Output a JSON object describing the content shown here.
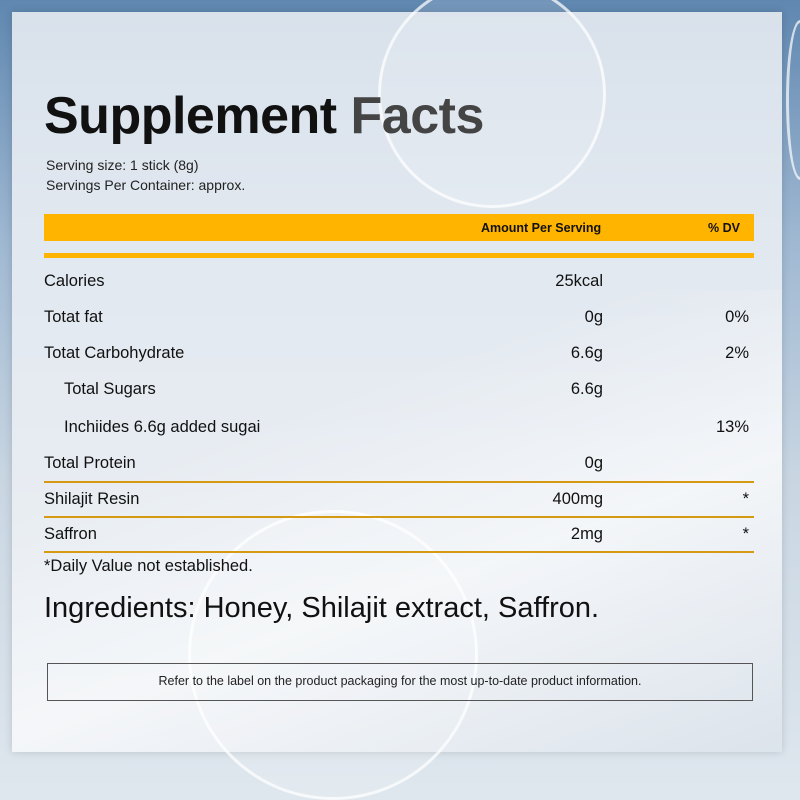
{
  "title": {
    "part1": "Supplement",
    "part2": "Facts"
  },
  "serving_size": "Serving size: 1 stick (8g)",
  "servings_per_container": "Servings Per Container: approx.",
  "header": {
    "amount": "Amount Per Serving",
    "dv": "% DV"
  },
  "colors": {
    "accent": "#ffb400",
    "rule": "#d69a12"
  },
  "rows": [
    {
      "name": "Calories",
      "amount": "25kcal",
      "dv": ""
    },
    {
      "name": "Totat fat",
      "amount": "0g",
      "dv": "0%"
    },
    {
      "name": "Totat Carbohydrate",
      "amount": "6.6g",
      "dv": "2%"
    },
    {
      "name": "Total Sugars",
      "amount": "6.6g",
      "dv": ""
    },
    {
      "name": "Inchiides 6.6g added sugai",
      "amount": "",
      "dv": "13%"
    },
    {
      "name": "Total Protein",
      "amount": "0g",
      "dv": ""
    },
    {
      "name": "Shilajit Resin",
      "amount": "400mg",
      "dv": "*"
    },
    {
      "name": "Saffron",
      "amount": "2mg",
      "dv": "*"
    }
  ],
  "footnote": "*Daily Value not established.",
  "ingredients": "Ingredients: Honey, Shilajit extract, Saffron.",
  "disclaimer": "Refer to the label on the product packaging for the most up-to-date product information."
}
